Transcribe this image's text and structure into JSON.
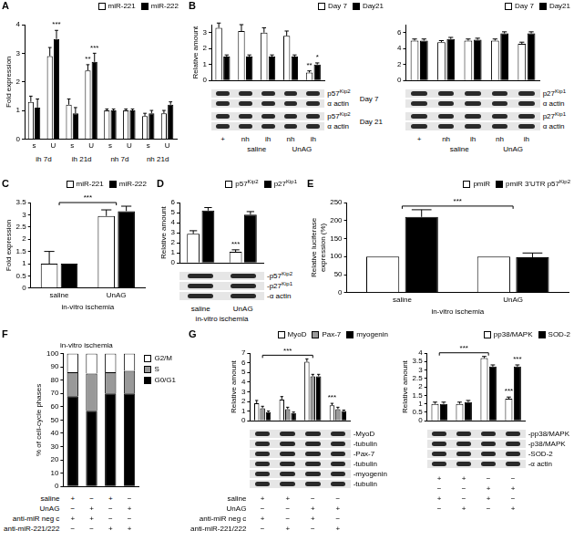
{
  "chart_data": [
    {
      "panel": "A",
      "type": "bar",
      "ylabel": "Fold expression",
      "categories": [
        "s",
        "U",
        "s",
        "U",
        "s",
        "U",
        "s",
        "U"
      ],
      "groups": [
        "ih 7d",
        "ih 7d",
        "ih 21d",
        "ih 21d",
        "nh 7d",
        "nh 7d",
        "nh 21d",
        "nh 21d"
      ],
      "series": [
        {
          "name": "miR-221",
          "color": "#ffffff",
          "values": [
            1.3,
            2.9,
            1.2,
            2.4,
            1.0,
            1.0,
            0.8,
            0.9
          ],
          "errors": [
            0.2,
            0.3,
            0.2,
            0.2,
            0.05,
            0.05,
            0.1,
            0.1
          ]
        },
        {
          "name": "miR-222",
          "color": "#000000",
          "values": [
            1.1,
            3.5,
            0.9,
            2.7,
            1.0,
            1.0,
            0.9,
            1.2
          ],
          "errors": [
            0.3,
            0.3,
            0.2,
            0.3,
            0.05,
            0.05,
            0.1,
            0.1
          ]
        }
      ],
      "annotations": [
        {
          "series": 1,
          "index": 1,
          "text": "***"
        },
        {
          "series": 0,
          "index": 3,
          "text": "**"
        },
        {
          "series": 1,
          "index": 3,
          "text": "***"
        }
      ],
      "ylim": [
        0,
        4
      ],
      "yticks": [
        0,
        1,
        2,
        3,
        4
      ],
      "grid": false,
      "legend": "top-right"
    },
    {
      "panel": "B",
      "type": "bar",
      "ylabel": "Relative amount",
      "categories": [
        "+",
        "nh",
        "ih",
        "nh",
        "ih"
      ],
      "groups": [
        null,
        "saline",
        "saline",
        "UnAG",
        "UnAG"
      ],
      "series": [
        {
          "name": "Day 7",
          "color": "#ffffff",
          "values": [
            3.3,
            3.1,
            3.0,
            2.8,
            0.5
          ],
          "errors": [
            0.3,
            0.4,
            0.3,
            0.3,
            0.1
          ]
        },
        {
          "name": "Day21",
          "color": "#000000",
          "values": [
            1.5,
            1.5,
            1.5,
            1.5,
            1.0
          ],
          "errors": [
            0.1,
            0.1,
            0.1,
            0.1,
            0.1
          ]
        }
      ],
      "annotations": [
        {
          "series": 0,
          "index": 4,
          "text": "**"
        },
        {
          "series": 1,
          "index": 4,
          "text": "*"
        }
      ],
      "blots": [
        {
          "label": "Day 7",
          "rows": [
            "p57Kip2",
            "α actin"
          ]
        },
        {
          "label": "Day 21",
          "rows": [
            "p57Kip2",
            "α actin"
          ]
        }
      ],
      "ylim": [
        0,
        3.5
      ],
      "yticks": [
        0,
        1,
        2,
        3
      ],
      "grid": false,
      "legend": "top-right",
      "tick_labels": "y"
    },
    {
      "type": "bar",
      "categories": [
        "+",
        "nh",
        "ih",
        "nh",
        "ih"
      ],
      "groups": [
        null,
        "saline",
        "saline",
        "UnAG",
        "UnAG"
      ],
      "series": [
        {
          "name": "Day 7",
          "color": "#ffffff",
          "values": [
            5.0,
            4.8,
            5.0,
            5.0,
            4.6
          ],
          "errors": [
            0.2,
            0.2,
            0.2,
            0.2,
            0.2
          ]
        },
        {
          "name": "Day21",
          "color": "#000000",
          "values": [
            5.0,
            5.2,
            5.1,
            5.9,
            5.9
          ],
          "errors": [
            0.2,
            0.2,
            0.2,
            0.2,
            0.2
          ]
        }
      ],
      "blots": [
        {
          "rows": [
            "p27Kip1",
            "α actin"
          ]
        },
        {
          "rows": [
            "p27Kip1",
            "α actin"
          ]
        }
      ],
      "ylim": [
        0,
        7
      ],
      "yticks": [
        0,
        2,
        4,
        6
      ],
      "grid": false,
      "legend": "top-right",
      "tick_labels": "y"
    },
    {
      "panel": "C",
      "type": "bar",
      "ylabel": "Fold expression",
      "xlabel": "in-vitro ischemia",
      "categories": [
        "saline",
        "UnAG"
      ],
      "series": [
        {
          "name": "miR-221",
          "color": "#ffffff",
          "values": [
            1.0,
            2.95
          ],
          "errors": [
            0.5,
            0.25
          ]
        },
        {
          "name": "miR-222",
          "color": "#000000",
          "values": [
            1.0,
            3.15
          ],
          "errors": [
            0,
            0.2
          ]
        }
      ],
      "annotations": [
        {
          "from": 0,
          "to": 1,
          "text": "***"
        }
      ],
      "ylim": [
        0,
        3.5
      ],
      "yticks": [
        0,
        0.5,
        1,
        1.5,
        2,
        2.5,
        3,
        3.5
      ],
      "grid": false,
      "legend": "top-right"
    },
    {
      "panel": "D",
      "type": "bar",
      "ylabel": "Relative amount",
      "xlabel": "in-vitro ischemia",
      "categories": [
        "saline",
        "UnAG"
      ],
      "series": [
        {
          "name": "p57Kip2",
          "color": "#ffffff",
          "values": [
            2.9,
            1.1
          ],
          "errors": [
            0.3,
            0.2
          ]
        },
        {
          "name": "p27Kip1",
          "color": "#000000",
          "values": [
            5.2,
            4.8
          ],
          "errors": [
            0.3,
            0.3
          ]
        }
      ],
      "annotations": [
        {
          "series": 0,
          "index": 1,
          "text": "***"
        }
      ],
      "blots": [
        {
          "rows": [
            "-p57Kip2",
            "-p27Kip1",
            "-α actin"
          ]
        }
      ],
      "ylim": [
        0,
        6
      ],
      "yticks": [
        0,
        1,
        2,
        3,
        4,
        5,
        6
      ],
      "grid": false,
      "legend": "top-right",
      "tick_labels": "y"
    },
    {
      "panel": "E",
      "type": "bar",
      "ylabel": [
        "Relative luciferase",
        "expression (%)"
      ],
      "xlabel": "in-vitro ischemia",
      "categories": [
        "saline",
        "UnAG"
      ],
      "series": [
        {
          "name": "pmiR",
          "color": "#ffffff",
          "values": [
            100,
            100
          ],
          "errors": [
            0,
            0
          ]
        },
        {
          "name": "pmiR 3'UTR p57Kip2",
          "color": "#000000",
          "values": [
            210,
            98
          ],
          "errors": [
            20,
            12
          ]
        }
      ],
      "annotations": [
        {
          "from": 0,
          "to": 1,
          "text": "***"
        }
      ],
      "ylim": [
        0,
        250
      ],
      "yticks": [
        0,
        50,
        100,
        150,
        200,
        250
      ],
      "grid": false,
      "legend": "top-right"
    },
    {
      "panel": "F",
      "type": "bar",
      "title": "in-vitro ischemia",
      "ylabel": "% of cell-cycle phases",
      "categories": [
        null,
        null,
        null,
        null
      ],
      "stacked": true,
      "series": [
        {
          "name": "G0/G1",
          "color": "#000000",
          "values": [
            68,
            57,
            70,
            70
          ]
        },
        {
          "name": "S",
          "color": "#999999",
          "values": [
            18,
            28,
            16,
            17
          ]
        },
        {
          "name": "G2/M",
          "color": "#ffffff",
          "values": [
            14,
            15,
            14,
            13
          ]
        }
      ],
      "conditions": [
        {
          "label": "saline",
          "marks": [
            "+",
            "−",
            "+",
            "−"
          ]
        },
        {
          "label": "UnAG",
          "marks": [
            "−",
            "+",
            "−",
            "+"
          ]
        },
        {
          "label": "anti-miR neg c",
          "marks": [
            "+",
            "+",
            "−",
            "−"
          ]
        },
        {
          "label": "anti-miR-221/222",
          "marks": [
            "−",
            "−",
            "+",
            "+"
          ]
        }
      ],
      "ylim": [
        0,
        100
      ],
      "yticks": [
        0,
        10,
        20,
        30,
        40,
        50,
        60,
        70,
        80,
        90,
        100
      ],
      "grid": false,
      "legend": "right",
      "tick_labels": "y"
    },
    {
      "panel": "G",
      "type": "bar",
      "ylabel": "Relative amount",
      "categories": [
        null,
        null,
        null,
        null
      ],
      "series": [
        {
          "name": "MyoD",
          "color": "#ffffff",
          "values": [
            1.8,
            2.2,
            6.1,
            1.6
          ],
          "errors": [
            0.3,
            0.3,
            0.3,
            0.2
          ]
        },
        {
          "name": "Pax-7",
          "color": "#999999",
          "values": [
            1.3,
            1.2,
            4.6,
            1.2
          ],
          "errors": [
            0.2,
            0.2,
            0.2,
            0.2
          ]
        },
        {
          "name": "myogenin",
          "color": "#000000",
          "values": [
            0.9,
            0.8,
            4.6,
            1.0
          ],
          "errors": [
            0.1,
            0.1,
            0.2,
            0.1
          ]
        }
      ],
      "annotations": [
        {
          "from": 0,
          "to": 2,
          "text": "***"
        },
        {
          "series": 0,
          "index": 3,
          "text": "***"
        }
      ],
      "blots": [
        {
          "rows": [
            "-MyoD",
            "-tubulin",
            "-Pax-7",
            "-tubulin",
            "-myogenin",
            "-tubulin"
          ]
        }
      ],
      "conditions": [
        {
          "label": "saline",
          "marks": [
            "+",
            "+",
            "−",
            "−"
          ]
        },
        {
          "label": "UnAG",
          "marks": [
            "−",
            "−",
            "+",
            "+"
          ]
        },
        {
          "label": "anti-miR neg c",
          "marks": [
            "+",
            "−",
            "+",
            "−"
          ]
        },
        {
          "label": "anti-miR-221/222",
          "marks": [
            "−",
            "+",
            "−",
            "+"
          ]
        }
      ],
      "ylim": [
        0,
        7
      ],
      "yticks": [
        0,
        1,
        2,
        3,
        4,
        5,
        6,
        7
      ],
      "grid": false,
      "legend": "top-right",
      "tick_labels": "y"
    },
    {
      "type": "bar",
      "ylabel": "Relative amount",
      "categories": [
        null,
        null,
        null,
        null
      ],
      "series": [
        {
          "name": "pp38/MAPK",
          "color": "#ffffff",
          "values": [
            1.0,
            1.0,
            3.7,
            1.3
          ],
          "errors": [
            0.1,
            0.1,
            0.1,
            0.1
          ]
        },
        {
          "name": "SOD-2",
          "color": "#000000",
          "values": [
            1.0,
            1.1,
            3.2,
            3.2
          ],
          "errors": [
            0.1,
            0.1,
            0.1,
            0.1
          ]
        }
      ],
      "annotations": [
        {
          "from": 0,
          "to": 2,
          "text": "***"
        },
        {
          "series": 0,
          "index": 3,
          "text": "***"
        },
        {
          "series": 1,
          "index": 3,
          "text": "***"
        }
      ],
      "blots": [
        {
          "rows": [
            "-pp38/MAPK",
            "-p38/MAPK",
            "-SOD-2",
            "-α actin"
          ]
        }
      ],
      "conditions": [
        {
          "marks": [
            "+",
            "+",
            "−",
            "−"
          ]
        },
        {
          "marks": [
            "−",
            "−",
            "+",
            "+"
          ]
        },
        {
          "marks": [
            "+",
            "−",
            "+",
            "−"
          ]
        },
        {
          "marks": [
            "−",
            "+",
            "−",
            "+"
          ]
        }
      ],
      "ylim": [
        0,
        4
      ],
      "yticks": [
        0,
        0.5,
        1,
        1.5,
        2,
        2.5,
        3,
        3.5,
        4
      ],
      "grid": false,
      "legend": "top-right",
      "tick_labels": "y"
    }
  ]
}
